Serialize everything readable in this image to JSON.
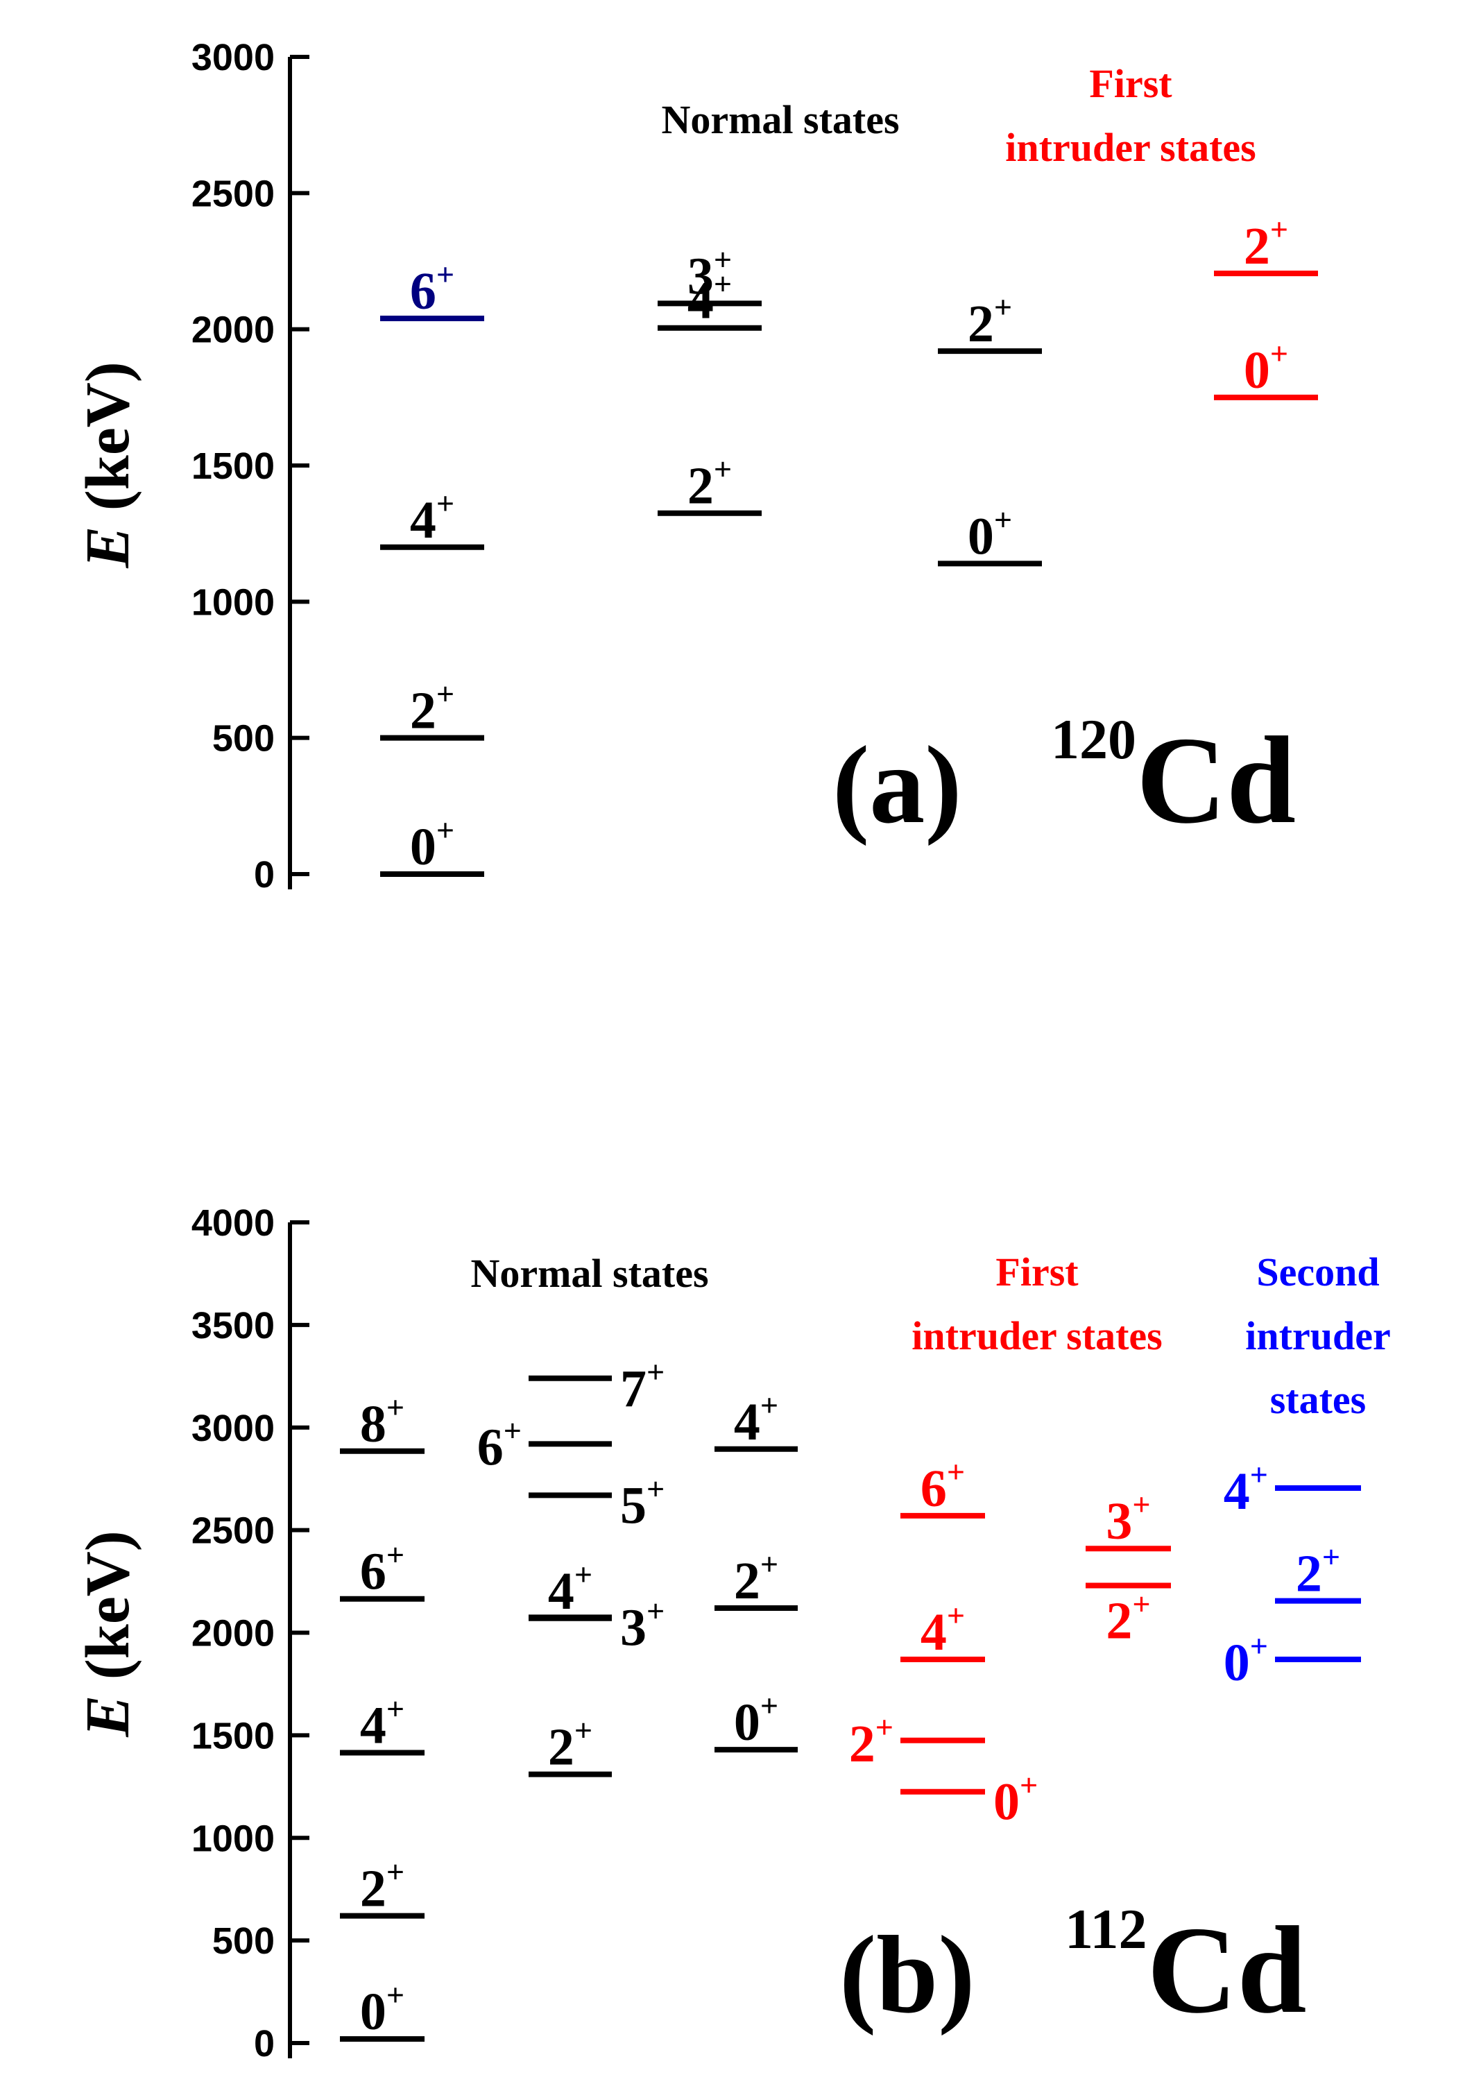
{
  "colors": {
    "normal": "#000000",
    "first_intruder": "#ff0000",
    "second_intruder": "#0000ff",
    "highlight": "#000080"
  },
  "axis": {
    "title_symbol": "E",
    "title_unit": " (keV)"
  },
  "panels": [
    {
      "id": "a",
      "tag": "(a)",
      "mass": "120",
      "element": "Cd",
      "ylim": [
        0,
        3000
      ],
      "ticks": [
        "0",
        "500",
        "1000",
        "1500",
        "2000",
        "2500",
        "3000"
      ],
      "group_titles": [
        {
          "text": "Normal states",
          "lines": [
            "Normal states"
          ],
          "color_key": "normal"
        },
        {
          "text": "First intruder states",
          "lines": [
            "First",
            "intruder states"
          ],
          "color_key": "first_intruder"
        }
      ],
      "levels": [
        {
          "col": 0,
          "energy": 0,
          "spin": "0",
          "parity": "+",
          "color_key": "normal"
        },
        {
          "col": 0,
          "energy": 500,
          "spin": "2",
          "parity": "+",
          "color_key": "normal"
        },
        {
          "col": 0,
          "energy": 1200,
          "spin": "4",
          "parity": "+",
          "color_key": "normal"
        },
        {
          "col": 0,
          "energy": 2040,
          "spin": "6",
          "parity": "+",
          "color_key": "highlight"
        },
        {
          "col": 1,
          "energy": 1325,
          "spin": "2",
          "parity": "+",
          "color_key": "normal"
        },
        {
          "col": 1,
          "energy": 2005,
          "spin": "4",
          "parity": "+",
          "color_key": "normal"
        },
        {
          "col": 1,
          "energy": 2095,
          "spin": "3",
          "parity": "+",
          "color_key": "normal"
        },
        {
          "col": 2,
          "energy": 1140,
          "spin": "0",
          "parity": "+",
          "color_key": "normal"
        },
        {
          "col": 2,
          "energy": 1920,
          "spin": "2",
          "parity": "+",
          "color_key": "normal"
        },
        {
          "col": 3,
          "energy": 1750,
          "spin": "0",
          "parity": "+",
          "color_key": "first_intruder"
        },
        {
          "col": 3,
          "energy": 2205,
          "spin": "2",
          "parity": "+",
          "color_key": "first_intruder"
        }
      ]
    },
    {
      "id": "b",
      "tag": "(b)",
      "mass": "112",
      "element": "Cd",
      "ylim": [
        0,
        4000
      ],
      "ticks": [
        "0",
        "500",
        "1000",
        "1500",
        "2000",
        "2500",
        "3000",
        "3500",
        "4000"
      ],
      "group_titles": [
        {
          "text": "Normal states",
          "lines": [
            "Normal states"
          ],
          "color_key": "normal"
        },
        {
          "text": "First intruder states",
          "lines": [
            "First",
            "intruder states"
          ],
          "color_key": "first_intruder"
        },
        {
          "text": "Second intruder states",
          "lines": [
            "Second",
            "intruder",
            "states"
          ],
          "color_key": "second_intruder"
        }
      ],
      "levels": [
        {
          "col": 0,
          "energy": 20,
          "spin": "0",
          "parity": "+",
          "color_key": "normal"
        },
        {
          "col": 0,
          "energy": 620,
          "spin": "2",
          "parity": "+",
          "color_key": "normal"
        },
        {
          "col": 0,
          "energy": 1415,
          "spin": "4",
          "parity": "+",
          "color_key": "normal"
        },
        {
          "col": 0,
          "energy": 2165,
          "spin": "6",
          "parity": "+",
          "color_key": "normal"
        },
        {
          "col": 0,
          "energy": 2885,
          "spin": "8",
          "parity": "+",
          "color_key": "normal"
        },
        {
          "col": 1,
          "energy": 1310,
          "spin": "2",
          "parity": "+",
          "color_key": "normal"
        },
        {
          "col": 1,
          "energy": 2070,
          "spin": "4",
          "parity": "+",
          "color_key": "normal"
        },
        {
          "col": 1,
          "energy": 2075,
          "spin": "3",
          "parity": "+",
          "color_key": "normal"
        },
        {
          "col": 1,
          "energy": 2670,
          "spin": "5",
          "parity": "+",
          "color_key": "normal"
        },
        {
          "col": 1,
          "energy": 2920,
          "spin": "6",
          "parity": "+",
          "color_key": "normal"
        },
        {
          "col": 1,
          "energy": 3240,
          "spin": "7",
          "parity": "+",
          "color_key": "normal"
        },
        {
          "col": 2,
          "energy": 1430,
          "spin": "0",
          "parity": "+",
          "color_key": "normal"
        },
        {
          "col": 2,
          "energy": 2120,
          "spin": "2",
          "parity": "+",
          "color_key": "normal"
        },
        {
          "col": 2,
          "energy": 2895,
          "spin": "4",
          "parity": "+",
          "color_key": "normal"
        },
        {
          "col": 3,
          "energy": 1225,
          "spin": "0",
          "parity": "+",
          "color_key": "first_intruder"
        },
        {
          "col": 3,
          "energy": 1475,
          "spin": "2",
          "parity": "+",
          "color_key": "first_intruder"
        },
        {
          "col": 3,
          "energy": 1870,
          "spin": "4",
          "parity": "+",
          "color_key": "first_intruder"
        },
        {
          "col": 3,
          "energy": 2570,
          "spin": "6",
          "parity": "+",
          "color_key": "first_intruder"
        },
        {
          "col": 4,
          "energy": 2230,
          "spin": "2",
          "parity": "+",
          "color_key": "first_intruder"
        },
        {
          "col": 4,
          "energy": 2410,
          "spin": "3",
          "parity": "+",
          "color_key": "first_intruder"
        },
        {
          "col": 5,
          "energy": 1870,
          "spin": "0",
          "parity": "+",
          "color_key": "second_intruder"
        },
        {
          "col": 5,
          "energy": 2155,
          "spin": "2",
          "parity": "+",
          "color_key": "second_intruder"
        },
        {
          "col": 5,
          "energy": 2705,
          "spin": "4",
          "parity": "+",
          "color_key": "second_intruder"
        }
      ]
    }
  ]
}
